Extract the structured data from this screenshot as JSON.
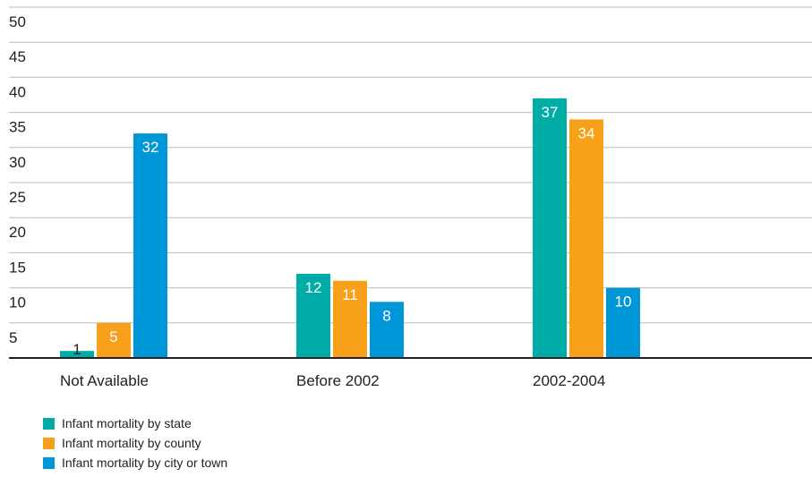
{
  "chart_data": {
    "type": "bar",
    "categories": [
      "Not Available",
      "Before 2002",
      "2002-2004"
    ],
    "series": [
      {
        "name": "Infant mortality by state",
        "color": "#00ada6",
        "values": [
          1,
          12,
          37
        ]
      },
      {
        "name": "Infant mortality by county",
        "color": "#f7a11a",
        "values": [
          5,
          11,
          34
        ]
      },
      {
        "name": "Infant mortality by city or town",
        "color": "#0097d8",
        "values": [
          32,
          8,
          10
        ]
      }
    ],
    "yticks": [
      5,
      10,
      15,
      20,
      25,
      30,
      35,
      40,
      45,
      50
    ],
    "ylim": [
      0,
      50
    ],
    "grid": true,
    "legend_position": "bottom-left",
    "title": "",
    "xlabel": "",
    "ylabel": ""
  }
}
